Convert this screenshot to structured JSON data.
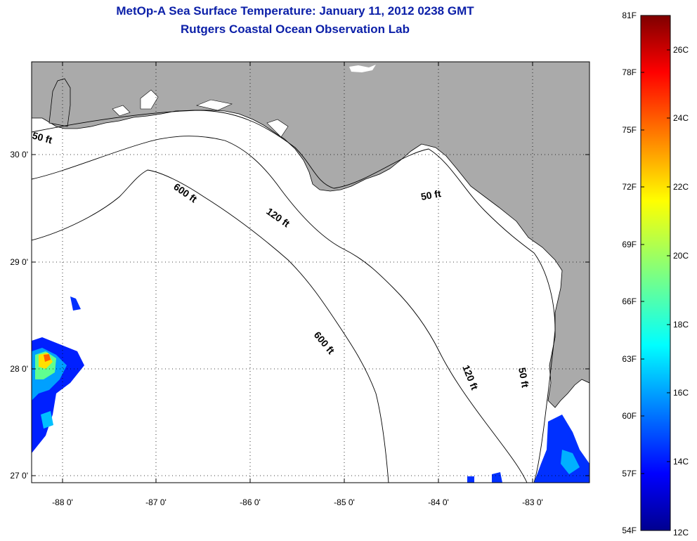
{
  "title": "MetOp-A Sea Surface Temperature:  January 11, 2012 0238 GMT",
  "subtitle": "Rutgers Coastal Ocean Observation Lab",
  "map": {
    "lon_ticks": [
      "-88 0'",
      "-87 0'",
      "-86 0'",
      "-85 0'",
      "-84 0'",
      "-83 0'"
    ],
    "lat_ticks": [
      "30 0'",
      "29 0'",
      "28 0'",
      "27 0'"
    ],
    "contour_labels": [
      "50 ft",
      "600 ft",
      "120 ft",
      "50 ft",
      "600 ft",
      "120 ft",
      "50 ft"
    ],
    "colors": {
      "land": "#aaaaaa",
      "ocean": "#ffffff",
      "grid": "#000000"
    }
  },
  "colorbar": {
    "fahrenheit": [
      "81F",
      "78F",
      "75F",
      "72F",
      "69F",
      "66F",
      "63F",
      "60F",
      "57F",
      "54F"
    ],
    "celsius": [
      "26C",
      "24C",
      "22C",
      "20C",
      "18C",
      "16C",
      "14C",
      "12C"
    ],
    "range_f": [
      54,
      81
    ],
    "colormap": "jet"
  }
}
